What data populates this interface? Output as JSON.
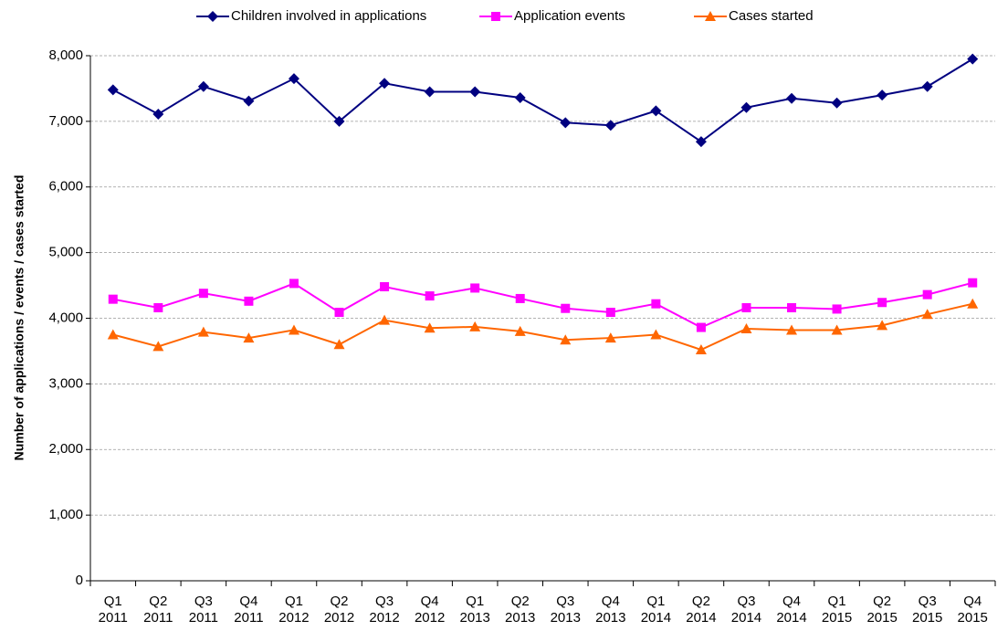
{
  "chart_data": {
    "type": "line",
    "y_label": "Number of applications / events / cases started",
    "categories": [
      "Q1 2011",
      "Q2 2011",
      "Q3 2011",
      "Q4 2011",
      "Q1 2012",
      "Q2 2012",
      "Q3 2012",
      "Q4 2012",
      "Q1 2013",
      "Q2 2013",
      "Q3 2013",
      "Q4 2013",
      "Q1 2014",
      "Q2 2014",
      "Q3 2014",
      "Q4 2014",
      "Q1 2015",
      "Q2 2015",
      "Q3 2015",
      "Q4 2015"
    ],
    "series": [
      {
        "name": "Children involved in applications",
        "color": "#000080",
        "marker": "diamond",
        "values": [
          7480,
          7110,
          7530,
          7310,
          7650,
          7000,
          7580,
          7450,
          7450,
          7360,
          6980,
          6940,
          7160,
          6690,
          7210,
          7350,
          7280,
          7400,
          7530,
          7950
        ]
      },
      {
        "name": "Application events",
        "color": "#ff00ff",
        "marker": "square",
        "values": [
          4290,
          4160,
          4380,
          4260,
          4530,
          4090,
          4480,
          4340,
          4460,
          4300,
          4150,
          4090,
          4220,
          3860,
          4160,
          4160,
          4140,
          4240,
          4360,
          4540
        ]
      },
      {
        "name": "Cases started",
        "color": "#ff6600",
        "marker": "triangle",
        "values": [
          3750,
          3570,
          3790,
          3700,
          3820,
          3600,
          3970,
          3850,
          3870,
          3800,
          3670,
          3700,
          3750,
          3520,
          3840,
          3820,
          3820,
          3890,
          4060,
          4220
        ]
      }
    ],
    "ylim": [
      0,
      8000
    ],
    "yticks": [
      0,
      {
        "value": 1000,
        "label": "1,000"
      },
      {
        "value": 2000,
        "label": "2,000"
      },
      {
        "value": 3000,
        "label": "3,000"
      },
      {
        "value": 4000,
        "label": "4,000"
      },
      {
        "value": 5000,
        "label": "5,000"
      },
      {
        "value": 6000,
        "label": "6,000"
      },
      {
        "value": 7000,
        "label": "7,000"
      },
      {
        "value": 8000,
        "label": "8,000"
      }
    ],
    "grid": true,
    "legend": "top"
  }
}
